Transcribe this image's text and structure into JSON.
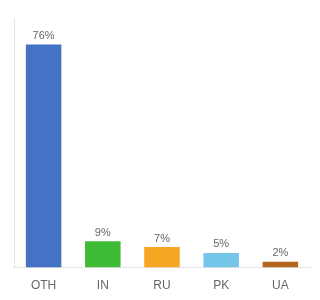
{
  "chart_data": {
    "type": "bar",
    "categories": [
      "OTH",
      "IN",
      "RU",
      "PK",
      "UA"
    ],
    "values": [
      76,
      9,
      7,
      5,
      2
    ],
    "value_labels": [
      "76%",
      "9%",
      "7%",
      "5%",
      "2%"
    ],
    "colors": [
      "#4472c4",
      "#3dbb35",
      "#f5a623",
      "#74c6e8",
      "#b5651d"
    ],
    "ylim": [
      0,
      85
    ],
    "grid": false,
    "data_labels": true,
    "tick_labels": "x"
  }
}
